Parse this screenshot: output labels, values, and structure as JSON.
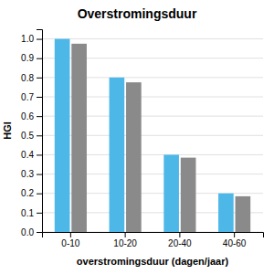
{
  "chart_data": {
    "type": "bar",
    "title": "Overstromingsduur",
    "x_label": "overstromingsduur (dagen/jaar)",
    "y_label": "HGI",
    "categories": [
      "0-10",
      "10-20",
      "20-40",
      "40-60"
    ],
    "series": [
      {
        "color": "#4db8e8",
        "values": [
          1.0,
          0.8,
          0.4,
          0.2
        ]
      },
      {
        "color": "#8a8a8a",
        "values": [
          0.975,
          0.775,
          0.385,
          0.185
        ]
      }
    ],
    "ylim": [
      0.0,
      1.05
    ],
    "yticks": [
      {
        "value": 0.0,
        "label": "0.0"
      },
      0.1,
      0.2,
      0.3,
      0.4,
      0.5,
      0.6,
      0.7,
      0.8,
      0.9,
      {
        "value": 1.0,
        "label": "1.0"
      }
    ],
    "grid": true
  }
}
